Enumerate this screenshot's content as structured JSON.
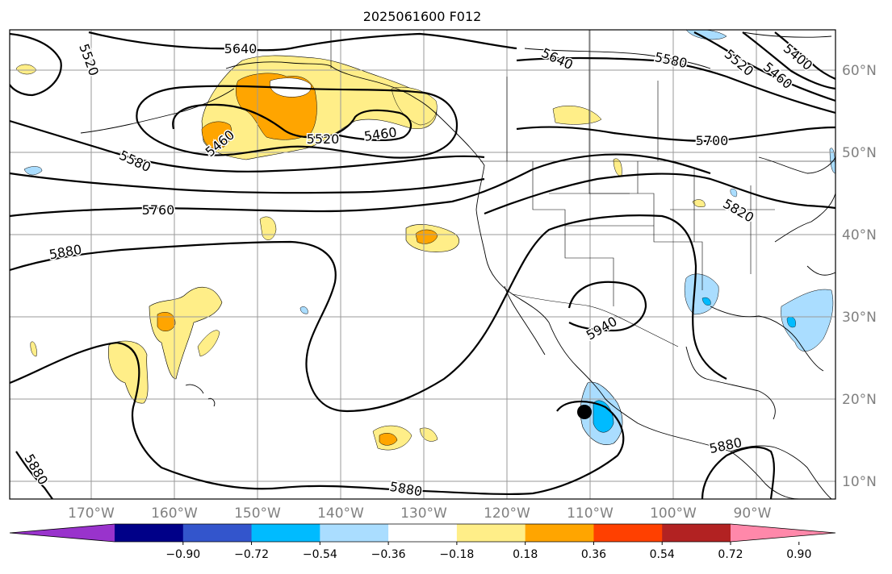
{
  "title": "2025061600 F012",
  "longitude_labels": [
    "170°W",
    "160°W",
    "150°W",
    "140°W",
    "130°W",
    "120°W",
    "110°W",
    "100°W",
    "90°W"
  ],
  "latitude_labels": [
    "60°N",
    "50°N",
    "40°N",
    "30°N",
    "20°N",
    "10°N"
  ],
  "contour_labels": [
    "5640",
    "5520",
    "5460",
    "5520",
    "5460",
    "5580",
    "5760",
    "5880",
    "5640",
    "5580",
    "5520",
    "5460",
    "5400",
    "5700",
    "5820",
    "5940",
    "5880",
    "5880",
    "5880"
  ],
  "colorbar": {
    "tick_labels": [
      "−0.90",
      "−0.72",
      "−0.54",
      "−0.36",
      "−0.18",
      "0.18",
      "0.36",
      "0.54",
      "0.72",
      "0.90"
    ],
    "colors": [
      "#9933cc",
      "#000088",
      "#3355cc",
      "#00bbff",
      "#aaddff",
      "#ffffff",
      "#ffee88",
      "#ffa500",
      "#ff4000",
      "#b22222",
      "#ff88aa"
    ]
  },
  "marker": {
    "label": "storm-center",
    "lon": -110.2,
    "lat": 18.4
  },
  "colors": {
    "yellow": "#ffee88",
    "orange": "#ffa500",
    "red": "#ff4000",
    "lightblue": "#aaddff",
    "blue": "#00bbff"
  }
}
